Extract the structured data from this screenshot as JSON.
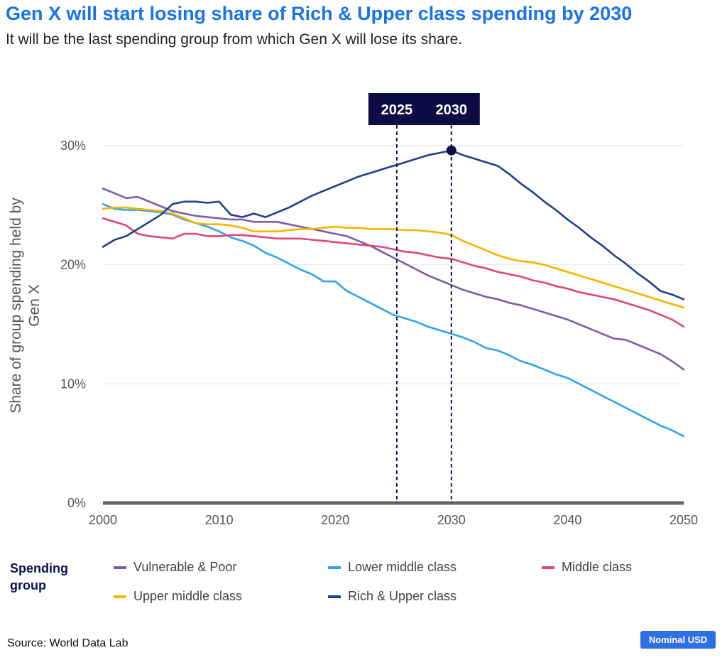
{
  "title": "Gen X will start losing share of Rich & Upper class spending by 2030",
  "subtitle": "It will be the last spending group from which Gen X will lose its share.",
  "legend": {
    "title": "Spending group"
  },
  "source": "Source: World Data Lab",
  "badge": "Nominal USD",
  "chart_data": {
    "type": "line",
    "ylabel": "Share of group spending held by Gen X",
    "xlim": [
      2000,
      2050
    ],
    "ylim": [
      0,
      30
    ],
    "x_ticks": [
      2000,
      2010,
      2020,
      2030,
      2040,
      2050
    ],
    "y_ticks": [
      0,
      10,
      20,
      30
    ],
    "y_tick_labels": [
      "0%",
      "10%",
      "20%",
      "30%"
    ],
    "grid": true,
    "markers": [
      {
        "label": "2025",
        "x": 2025.3
      },
      {
        "label": "2030",
        "x": 2030
      }
    ],
    "highlight_point": {
      "series": "Rich & Upper class",
      "x": 2030,
      "y": 29.6
    },
    "series": [
      {
        "name": "Vulnerable & Poor",
        "color": "#7b5ea7",
        "x": [
          2000,
          2001,
          2002,
          2003,
          2004,
          2005,
          2006,
          2007,
          2008,
          2009,
          2010,
          2011,
          2012,
          2013,
          2014,
          2015,
          2016,
          2017,
          2018,
          2019,
          2020,
          2021,
          2022,
          2023,
          2024,
          2025,
          2026,
          2027,
          2028,
          2029,
          2030,
          2031,
          2032,
          2033,
          2034,
          2035,
          2036,
          2037,
          2038,
          2039,
          2040,
          2041,
          2042,
          2043,
          2044,
          2045,
          2046,
          2047,
          2048,
          2049,
          2050
        ],
        "values": [
          26.4,
          26.0,
          25.6,
          25.7,
          25.3,
          24.9,
          24.5,
          24.3,
          24.1,
          24.0,
          23.9,
          23.8,
          23.8,
          23.6,
          23.6,
          23.6,
          23.4,
          23.2,
          23.0,
          22.8,
          22.6,
          22.4,
          22.0,
          21.6,
          21.1,
          20.6,
          20.1,
          19.6,
          19.1,
          18.7,
          18.3,
          17.9,
          17.6,
          17.3,
          17.1,
          16.8,
          16.6,
          16.3,
          16.0,
          15.7,
          15.4,
          15.0,
          14.6,
          14.2,
          13.8,
          13.7,
          13.3,
          12.9,
          12.5,
          11.9,
          11.2
        ]
      },
      {
        "name": "Lower middle class",
        "color": "#2ea3f2",
        "x": [
          2000,
          2001,
          2002,
          2003,
          2004,
          2005,
          2006,
          2007,
          2008,
          2009,
          2010,
          2011,
          2012,
          2013,
          2014,
          2015,
          2016,
          2017,
          2018,
          2019,
          2020,
          2021,
          2022,
          2023,
          2024,
          2025,
          2026,
          2027,
          2028,
          2029,
          2030,
          2031,
          2032,
          2033,
          2034,
          2035,
          2036,
          2037,
          2038,
          2039,
          2040,
          2041,
          2042,
          2043,
          2044,
          2045,
          2046,
          2047,
          2048,
          2049,
          2050
        ],
        "values": [
          25.1,
          24.7,
          24.6,
          24.6,
          24.5,
          24.4,
          24.2,
          23.8,
          23.5,
          23.2,
          22.8,
          22.3,
          22.0,
          21.6,
          21.0,
          20.6,
          20.1,
          19.6,
          19.2,
          18.6,
          18.6,
          17.8,
          17.3,
          16.8,
          16.3,
          15.8,
          15.5,
          15.2,
          14.8,
          14.5,
          14.2,
          13.9,
          13.5,
          13.0,
          12.8,
          12.4,
          11.9,
          11.6,
          11.2,
          10.8,
          10.5,
          10.0,
          9.5,
          9.0,
          8.5,
          8.0,
          7.5,
          7.0,
          6.5,
          6.1,
          5.6
        ]
      },
      {
        "name": "Middle class",
        "color": "#e0457b",
        "x": [
          2000,
          2001,
          2002,
          2003,
          2004,
          2005,
          2006,
          2007,
          2008,
          2009,
          2010,
          2011,
          2012,
          2013,
          2014,
          2015,
          2016,
          2017,
          2018,
          2019,
          2020,
          2021,
          2022,
          2023,
          2024,
          2025,
          2026,
          2027,
          2028,
          2029,
          2030,
          2031,
          2032,
          2033,
          2034,
          2035,
          2036,
          2037,
          2038,
          2039,
          2040,
          2041,
          2042,
          2043,
          2044,
          2045,
          2046,
          2047,
          2048,
          2049,
          2050
        ],
        "values": [
          23.9,
          23.6,
          23.3,
          22.6,
          22.4,
          22.3,
          22.2,
          22.6,
          22.6,
          22.4,
          22.4,
          22.5,
          22.5,
          22.4,
          22.3,
          22.2,
          22.2,
          22.2,
          22.1,
          22.0,
          21.9,
          21.8,
          21.7,
          21.6,
          21.5,
          21.3,
          21.1,
          21.0,
          20.8,
          20.6,
          20.5,
          20.2,
          19.9,
          19.7,
          19.4,
          19.2,
          19.0,
          18.7,
          18.5,
          18.2,
          18.0,
          17.7,
          17.5,
          17.3,
          17.1,
          16.8,
          16.5,
          16.2,
          15.8,
          15.4,
          14.8
        ]
      },
      {
        "name": "Upper middle class",
        "color": "#f6b400",
        "x": [
          2000,
          2001,
          2002,
          2003,
          2004,
          2005,
          2006,
          2007,
          2008,
          2009,
          2010,
          2011,
          2012,
          2013,
          2014,
          2015,
          2016,
          2017,
          2018,
          2019,
          2020,
          2021,
          2022,
          2023,
          2024,
          2025,
          2026,
          2027,
          2028,
          2029,
          2030,
          2031,
          2032,
          2033,
          2034,
          2035,
          2036,
          2037,
          2038,
          2039,
          2040,
          2041,
          2042,
          2043,
          2044,
          2045,
          2046,
          2047,
          2048,
          2049,
          2050
        ],
        "values": [
          24.7,
          24.8,
          24.8,
          24.7,
          24.6,
          24.5,
          24.3,
          23.9,
          23.5,
          23.4,
          23.4,
          23.3,
          23.1,
          22.8,
          22.8,
          22.8,
          22.9,
          23.0,
          23.0,
          23.1,
          23.2,
          23.1,
          23.1,
          23.0,
          23.0,
          23.0,
          22.9,
          22.9,
          22.8,
          22.7,
          22.5,
          22.0,
          21.6,
          21.2,
          20.8,
          20.5,
          20.3,
          20.2,
          20.0,
          19.7,
          19.4,
          19.1,
          18.8,
          18.5,
          18.2,
          17.9,
          17.6,
          17.3,
          17.0,
          16.7,
          16.4
        ]
      },
      {
        "name": "Rich & Upper class",
        "color": "#213f8a",
        "x": [
          2000,
          2001,
          2002,
          2003,
          2004,
          2005,
          2006,
          2007,
          2008,
          2009,
          2010,
          2011,
          2012,
          2013,
          2014,
          2015,
          2016,
          2017,
          2018,
          2019,
          2020,
          2021,
          2022,
          2023,
          2024,
          2025,
          2026,
          2027,
          2028,
          2029,
          2030,
          2031,
          2032,
          2033,
          2034,
          2035,
          2036,
          2037,
          2038,
          2039,
          2040,
          2041,
          2042,
          2043,
          2044,
          2045,
          2046,
          2047,
          2048,
          2049,
          2050
        ],
        "values": [
          21.5,
          22.1,
          22.4,
          23.0,
          23.6,
          24.2,
          25.1,
          25.3,
          25.3,
          25.2,
          25.3,
          24.2,
          24.0,
          24.3,
          24.0,
          24.4,
          24.8,
          25.3,
          25.8,
          26.2,
          26.6,
          27.0,
          27.4,
          27.7,
          28.0,
          28.3,
          28.6,
          28.9,
          29.2,
          29.4,
          29.6,
          29.2,
          28.9,
          28.6,
          28.3,
          27.6,
          26.8,
          26.1,
          25.3,
          24.6,
          23.8,
          23.1,
          22.3,
          21.6,
          20.8,
          20.1,
          19.3,
          18.6,
          17.8,
          17.5,
          17.1
        ]
      }
    ]
  }
}
